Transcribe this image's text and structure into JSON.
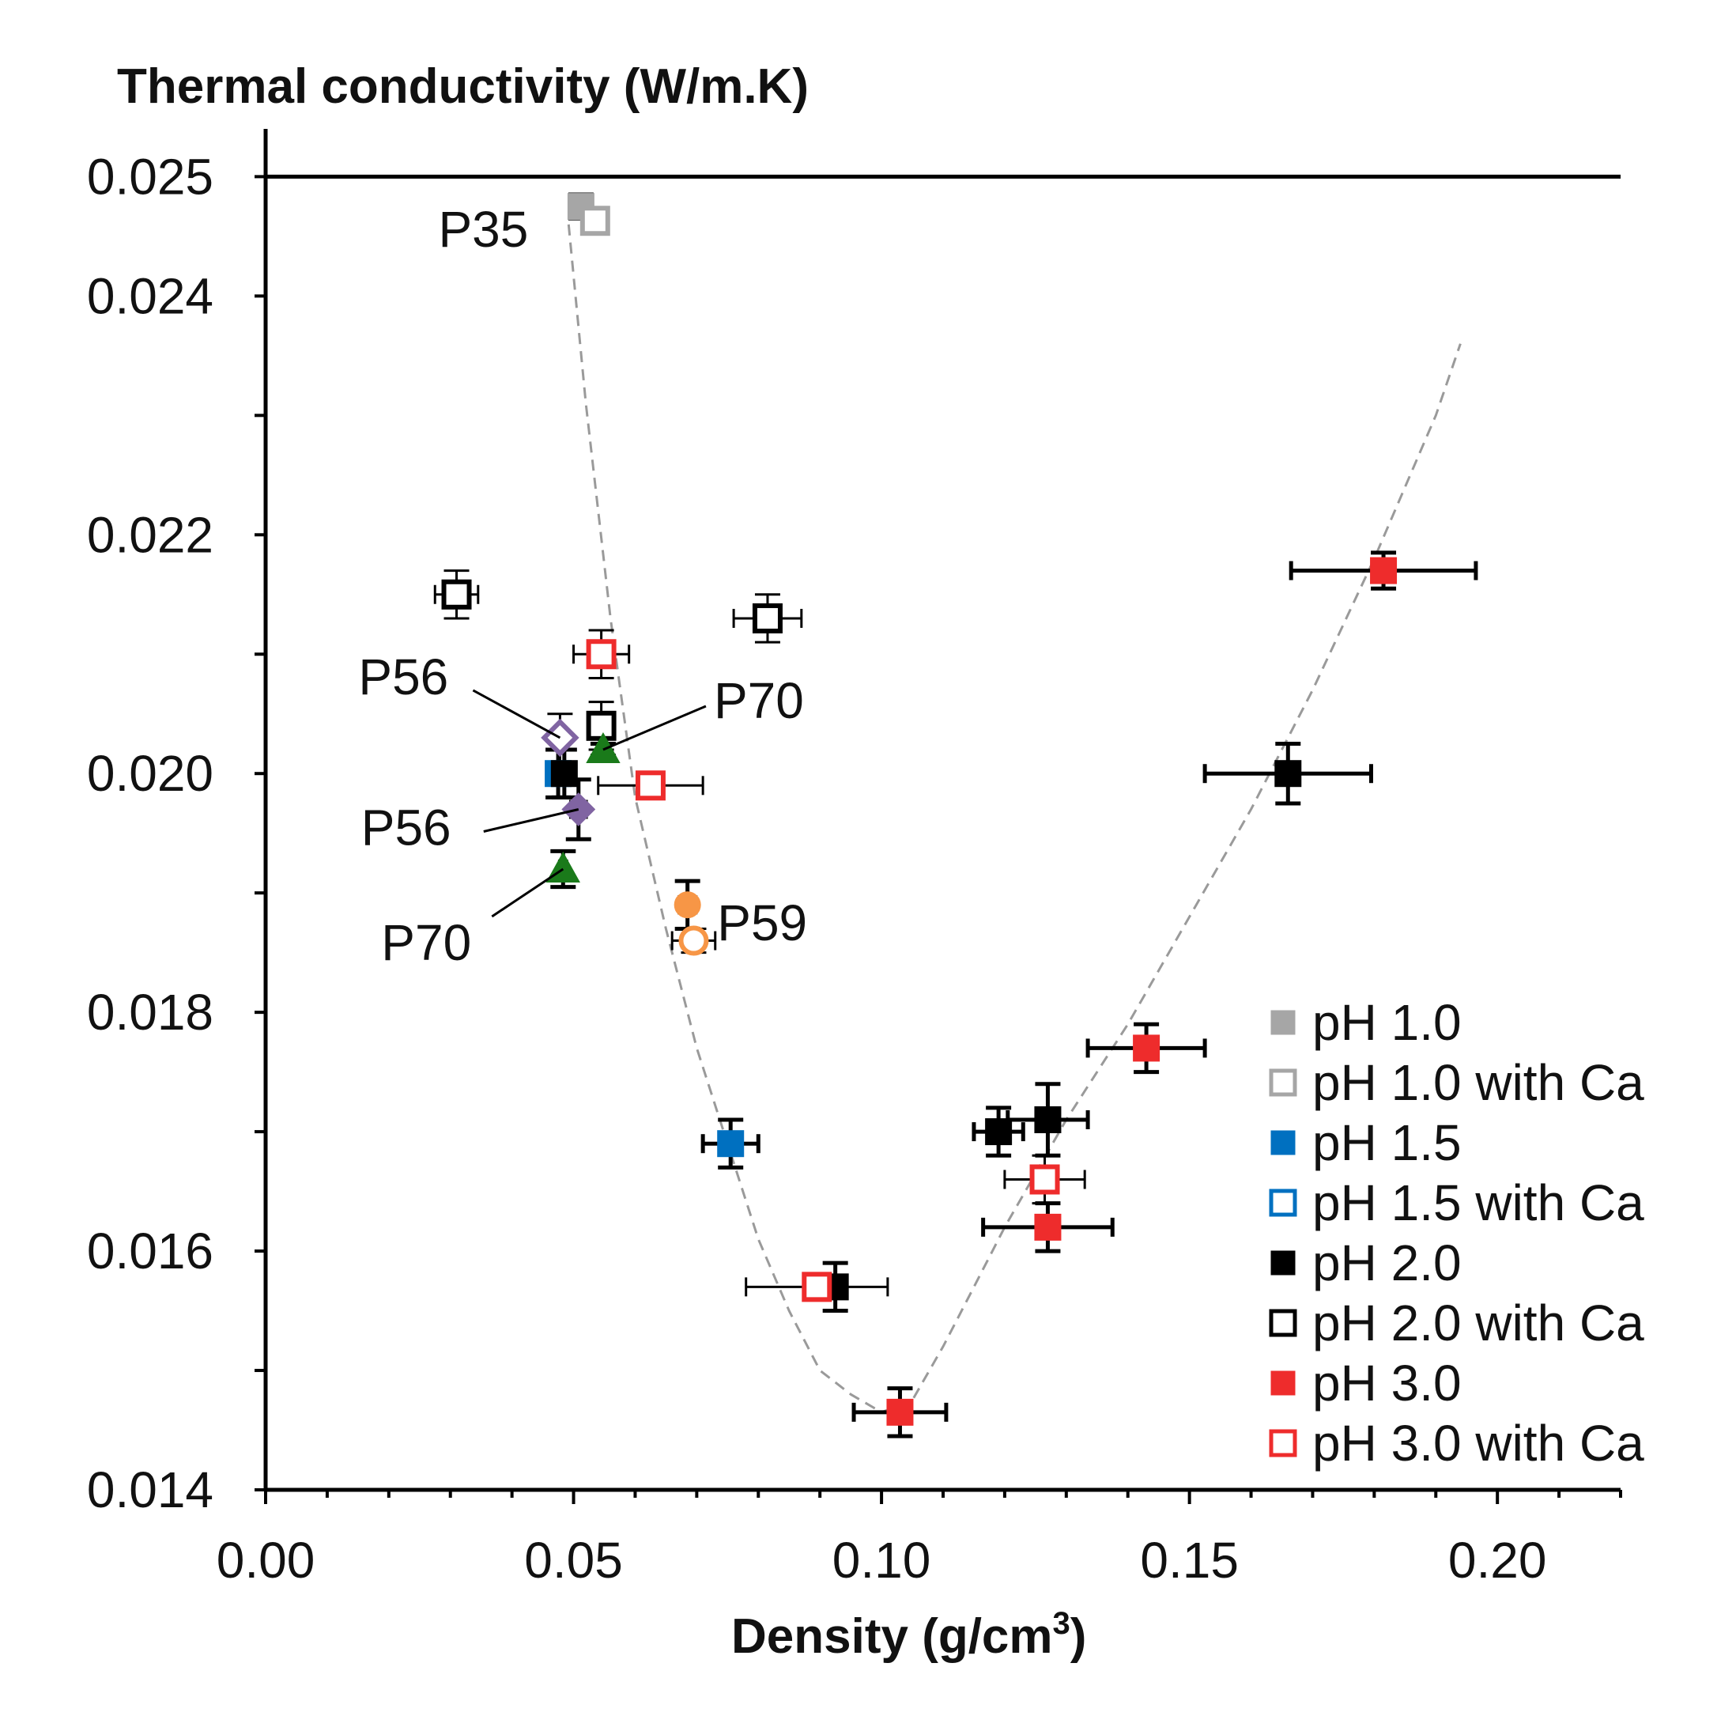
{
  "chart_data": {
    "type": "scatter",
    "title": "Thermal conductivity (W/m.K)",
    "xlabel": "Density (g/cm",
    "xlabel_sup": "3",
    "xlabel_close": ")",
    "xlim": [
      0.0,
      0.22
    ],
    "ylim": [
      0.014,
      0.0254
    ],
    "x_ticks": [
      {
        "value": 0.0,
        "label": "0.00"
      },
      {
        "value": 0.05,
        "label": "0.05"
      },
      {
        "value": 0.1,
        "label": "0.10"
      },
      {
        "value": 0.15,
        "label": "0.15"
      },
      {
        "value": 0.2,
        "label": "0.20"
      }
    ],
    "y_ticks": [
      {
        "value": 0.014,
        "label": "0.014"
      },
      {
        "value": 0.016,
        "label": "0.016"
      },
      {
        "value": 0.018,
        "label": "0.018"
      },
      {
        "value": 0.02,
        "label": "0.020"
      },
      {
        "value": 0.022,
        "label": "0.022"
      },
      {
        "value": 0.024,
        "label": "0.024"
      },
      {
        "value": 0.025,
        "label": "0.025"
      }
    ],
    "reference_line": {
      "y": 0.025
    },
    "trend_curve": {
      "style": "dashed",
      "points": [
        [
          0.0492,
          0.0246
        ],
        [
          0.052,
          0.0231
        ],
        [
          0.056,
          0.0213
        ],
        [
          0.06,
          0.0198
        ],
        [
          0.065,
          0.0187
        ],
        [
          0.07,
          0.0177
        ],
        [
          0.075,
          0.0169
        ],
        [
          0.08,
          0.0161
        ],
        [
          0.085,
          0.0155
        ],
        [
          0.09,
          0.015
        ],
        [
          0.095,
          0.0148
        ],
        [
          0.1,
          0.01465
        ],
        [
          0.105,
          0.01475
        ],
        [
          0.11,
          0.0152
        ],
        [
          0.115,
          0.0157
        ],
        [
          0.12,
          0.0162
        ],
        [
          0.125,
          0.01665
        ],
        [
          0.13,
          0.0171
        ],
        [
          0.14,
          0.0179
        ],
        [
          0.15,
          0.0188
        ],
        [
          0.16,
          0.0197
        ],
        [
          0.17,
          0.0207
        ],
        [
          0.18,
          0.0218
        ],
        [
          0.19,
          0.023
        ],
        [
          0.194,
          0.0236
        ]
      ]
    },
    "legend": {
      "position": "bottom-right",
      "entries": [
        {
          "label": "pH 1.0",
          "color": "#a6a6a6",
          "filled": true
        },
        {
          "label": "pH 1.0 with Ca",
          "color": "#a6a6a6",
          "filled": false
        },
        {
          "label": "pH 1.5",
          "color": "#0070c0",
          "filled": true
        },
        {
          "label": "pH 1.5 with Ca",
          "color": "#0070c0",
          "filled": false
        },
        {
          "label": "pH 2.0",
          "color": "#000000",
          "filled": true
        },
        {
          "label": "pH 2.0 with Ca",
          "color": "#000000",
          "filled": false
        },
        {
          "label": "pH 3.0",
          "color": "#ee2c2c",
          "filled": true
        },
        {
          "label": "pH 3.0 with Ca",
          "color": "#ee2c2c",
          "filled": false
        }
      ]
    },
    "series": [
      {
        "name": "pH 1.0",
        "marker": "square",
        "color": "#a6a6a6",
        "filled": true,
        "points": [
          {
            "x": 0.0512,
            "y": 0.02475,
            "xerr": 0.001,
            "yerr": 0.0001
          }
        ]
      },
      {
        "name": "pH 1.0 with Ca",
        "marker": "square",
        "color": "#a6a6a6",
        "filled": false,
        "points": [
          {
            "x": 0.0535,
            "y": 0.02463,
            "xerr": 0.0005,
            "yerr": 0.0001
          }
        ]
      },
      {
        "name": "pH 1.5",
        "marker": "square",
        "color": "#0070c0",
        "filled": true,
        "points": [
          {
            "x": 0.0475,
            "y": 0.02,
            "xerr": 0.0008,
            "yerr": 0.0002
          },
          {
            "x": 0.0755,
            "y": 0.0169,
            "xerr": 0.0045,
            "yerr": 0.0002
          }
        ]
      },
      {
        "name": "pH 2.0",
        "marker": "square",
        "color": "#000000",
        "filled": true,
        "points": [
          {
            "x": 0.0485,
            "y": 0.02,
            "xerr": 0.001,
            "yerr": 0.0002
          },
          {
            "x": 0.0925,
            "y": 0.0157,
            "xerr": 0.0015,
            "yerr": 0.0002
          },
          {
            "x": 0.119,
            "y": 0.017,
            "xerr": 0.004,
            "yerr": 0.0002
          },
          {
            "x": 0.127,
            "y": 0.0171,
            "xerr": 0.0065,
            "yerr": 0.0003
          },
          {
            "x": 0.166,
            "y": 0.02,
            "xerr": 0.0135,
            "yerr": 0.00025
          }
        ]
      },
      {
        "name": "pH 2.0 with Ca",
        "marker": "square",
        "color": "#000000",
        "filled": false,
        "points": [
          {
            "x": 0.031,
            "y": 0.0215,
            "xerr": 0.0035,
            "yerr": 0.0002
          },
          {
            "x": 0.0545,
            "y": 0.0204,
            "xerr": 0.0022,
            "yerr": 0.0002
          },
          {
            "x": 0.0815,
            "y": 0.0213,
            "xerr": 0.0055,
            "yerr": 0.0002
          }
        ]
      },
      {
        "name": "pH 3.0",
        "marker": "square",
        "color": "#ee2c2c",
        "filled": true,
        "points": [
          {
            "x": 0.103,
            "y": 0.01465,
            "xerr": 0.0075,
            "yerr": 0.0002
          },
          {
            "x": 0.127,
            "y": 0.0162,
            "xerr": 0.0105,
            "yerr": 0.0002
          },
          {
            "x": 0.143,
            "y": 0.0177,
            "xerr": 0.0095,
            "yerr": 0.0002
          },
          {
            "x": 0.1815,
            "y": 0.0217,
            "xerr": 0.015,
            "yerr": 0.00015
          }
        ]
      },
      {
        "name": "pH 3.0 with Ca",
        "marker": "square",
        "color": "#ee2c2c",
        "filled": false,
        "points": [
          {
            "x": 0.0545,
            "y": 0.021,
            "xerr": 0.0045,
            "yerr": 0.0002
          },
          {
            "x": 0.0625,
            "y": 0.0199,
            "xerr": 0.0085,
            "yerr": 0.0001
          },
          {
            "x": 0.0895,
            "y": 0.0157,
            "xerr": 0.0115,
            "yerr": 0.0001
          },
          {
            "x": 0.1265,
            "y": 0.0166,
            "xerr": 0.0065,
            "yerr": 0.0002
          }
        ]
      },
      {
        "name": "P56",
        "marker": "diamond",
        "color": "#8064a2",
        "filled": true,
        "points": [
          {
            "x": 0.0508,
            "y": 0.0197,
            "xerr": 0.0012,
            "yerr": 0.00025
          }
        ]
      },
      {
        "name": "P56 with Ca",
        "marker": "diamond",
        "color": "#8064a2",
        "filled": false,
        "points": [
          {
            "x": 0.0478,
            "y": 0.0203,
            "xerr": 0.0012,
            "yerr": 0.0002
          }
        ]
      },
      {
        "name": "P70",
        "marker": "triangle",
        "color": "#1a7a1a",
        "filled": true,
        "points": [
          {
            "x": 0.0483,
            "y": 0.0192,
            "xerr": 0.0005,
            "yerr": 0.00015
          },
          {
            "x": 0.0548,
            "y": 0.0202,
            "xerr": 0.0005,
            "yerr": 5e-05
          }
        ]
      },
      {
        "name": "P59",
        "marker": "circle",
        "color": "#f79646",
        "filled": true,
        "points": [
          {
            "x": 0.0685,
            "y": 0.0189,
            "xerr": 0.0013,
            "yerr": 0.0002
          }
        ]
      },
      {
        "name": "P59 with Ca",
        "marker": "circle",
        "color": "#f79646",
        "filled": false,
        "points": [
          {
            "x": 0.0695,
            "y": 0.0186,
            "xerr": 0.0035,
            "yerr": 0.0001
          }
        ]
      }
    ],
    "annotations": [
      {
        "text": "P35",
        "anchor_x": 0.0505,
        "anchor_y": 0.0246,
        "leader": false
      },
      {
        "text": "P56",
        "anchor_x": 0.0478,
        "anchor_y": 0.0203,
        "leader": true
      },
      {
        "text": "P70",
        "anchor_x": 0.0548,
        "anchor_y": 0.0202,
        "leader": true
      },
      {
        "text": "P56",
        "anchor_x": 0.0508,
        "anchor_y": 0.0197,
        "leader": true
      },
      {
        "text": "P70",
        "anchor_x": 0.0483,
        "anchor_y": 0.0192,
        "leader": true
      },
      {
        "text": "P59",
        "anchor_x": 0.0705,
        "anchor_y": 0.01875,
        "leader": false
      }
    ]
  }
}
